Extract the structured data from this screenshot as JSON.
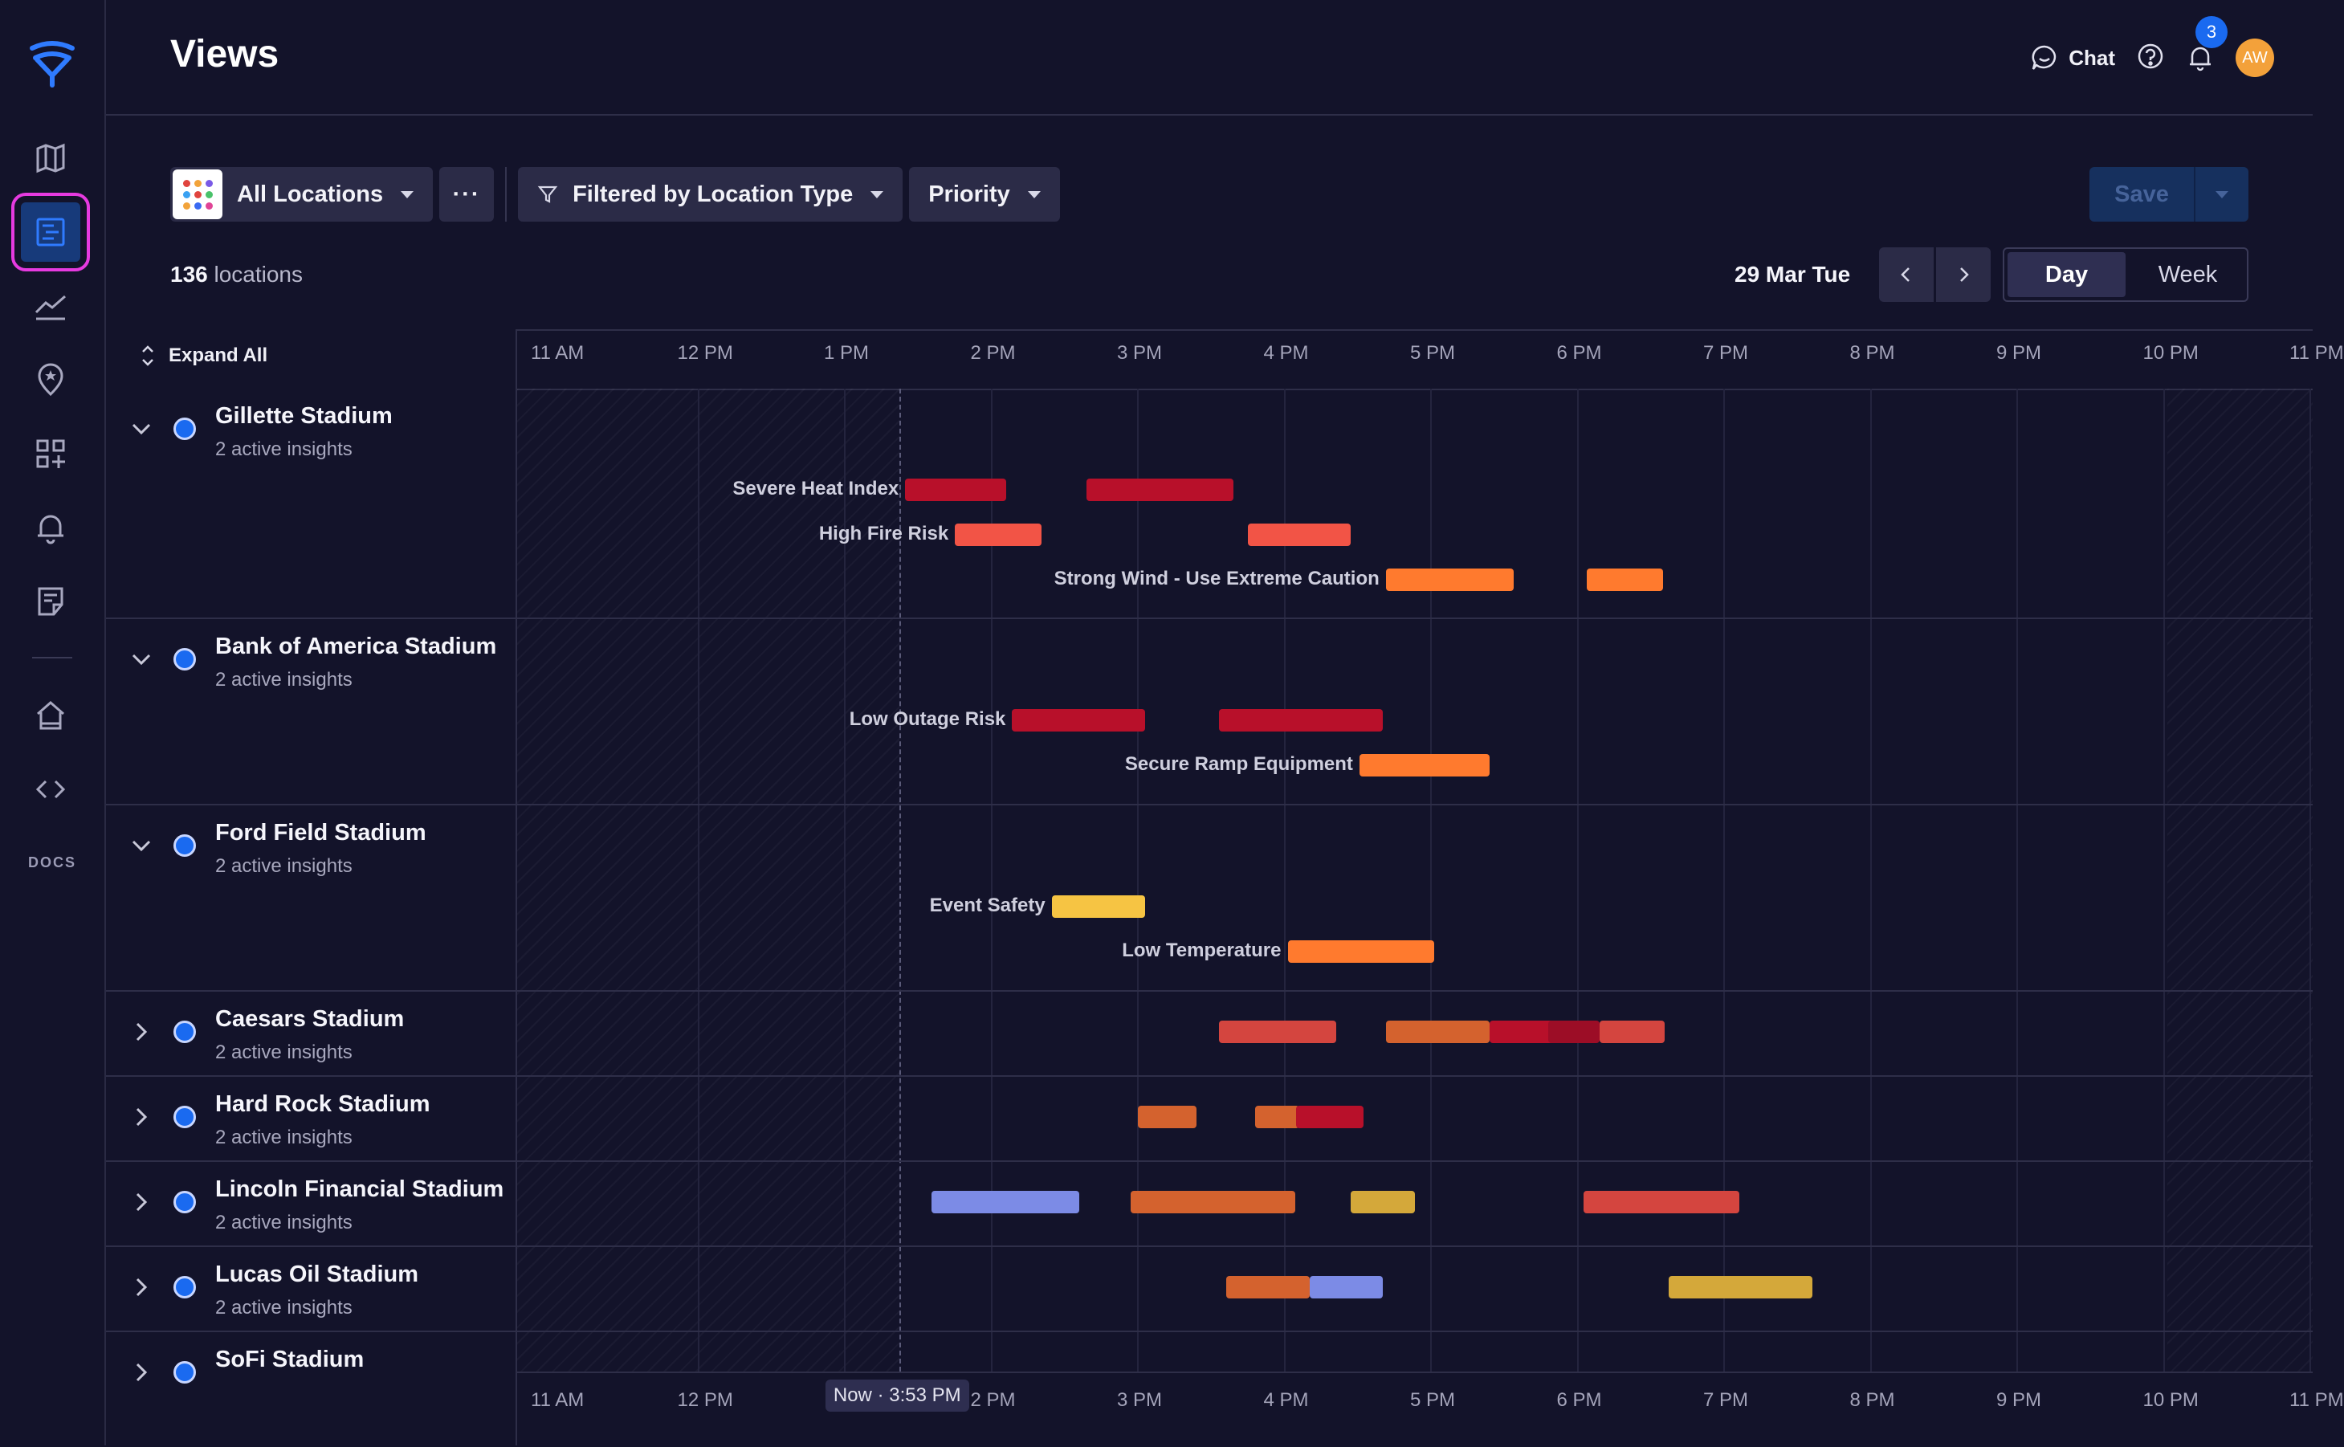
{
  "header": {
    "title": "Views",
    "chat_label": "Chat",
    "notification_count": "3",
    "avatar_initials": "AW"
  },
  "sidebar": {
    "items": [
      {
        "name": "map-icon"
      },
      {
        "name": "views-icon",
        "active": true
      },
      {
        "name": "analytics-icon"
      },
      {
        "name": "location-pin-icon"
      },
      {
        "name": "apps-add-icon"
      },
      {
        "name": "bell-icon"
      },
      {
        "name": "notes-icon"
      },
      {
        "name": "home-icon"
      },
      {
        "name": "code-icon"
      }
    ],
    "docs_label": "DOCS"
  },
  "toolbar": {
    "locations_label": "All Locations",
    "more_label": "···",
    "filter_label": "Filtered by Location Type",
    "priority_label": "Priority",
    "save_label": "Save"
  },
  "summary": {
    "count": "136",
    "count_suffix": " locations",
    "date": "29 Mar Tue",
    "view_day": "Day",
    "view_week": "Week"
  },
  "timeline": {
    "expand_all": "Expand All",
    "hours": [
      "11 AM",
      "12 PM",
      "1 PM",
      "2 PM",
      "3 PM",
      "4 PM",
      "5 PM",
      "6 PM",
      "7 PM",
      "8 PM",
      "9 PM",
      "10 PM",
      "11 PM"
    ],
    "now_label": "Now",
    "now_time": "· 3:53 PM"
  },
  "colors": {
    "severe": "#b8102a",
    "high": "#f25446",
    "orange": "#ff7a2e",
    "yellow": "#f6c443",
    "blue": "#7c8be6"
  },
  "rows": [
    {
      "name": "Gillette Stadium",
      "sub": "2 active insights",
      "expanded": true
    },
    {
      "name": "Bank of America Stadium",
      "sub": "2 active insights",
      "expanded": true
    },
    {
      "name": "Ford Field Stadium",
      "sub": "2 active insights",
      "expanded": true
    },
    {
      "name": "Caesars Stadium",
      "sub": "2 active insights",
      "expanded": false
    },
    {
      "name": "Hard Rock Stadium",
      "sub": "2 active insights",
      "expanded": false
    },
    {
      "name": "Lincoln Financial Stadium",
      "sub": "2 active insights",
      "expanded": false
    },
    {
      "name": "Lucas Oil Stadium",
      "sub": "2 active insights",
      "expanded": false
    },
    {
      "name": "SoFi Stadium",
      "sub": "",
      "expanded": false
    }
  ],
  "insights": [
    {
      "row": 0,
      "lane": 0,
      "label": "Severe Heat Index",
      "color": "severe",
      "segments": [
        [
          13.39,
          14.08
        ],
        [
          14.63,
          15.63
        ]
      ]
    },
    {
      "row": 0,
      "lane": 1,
      "label": "High Fire Risk",
      "color": "high",
      "segments": [
        [
          13.73,
          14.32
        ],
        [
          15.73,
          16.43
        ]
      ]
    },
    {
      "row": 0,
      "lane": 2,
      "label": "Strong Wind - Use Extreme Caution",
      "color": "orange",
      "segments": [
        [
          16.67,
          17.54
        ],
        [
          18.04,
          18.56
        ]
      ]
    },
    {
      "row": 1,
      "lane": 0,
      "label": "Low Outage Risk",
      "color": "severe",
      "segments": [
        [
          14.12,
          15.03
        ],
        [
          15.53,
          16.65
        ]
      ]
    },
    {
      "row": 1,
      "lane": 1,
      "label": "Secure Ramp Equipment",
      "color": "orange",
      "segments": [
        [
          16.49,
          17.38
        ]
      ]
    },
    {
      "row": 2,
      "lane": 0,
      "label": "Event Safety",
      "color": "yellow",
      "segments": [
        [
          14.39,
          15.03
        ]
      ]
    },
    {
      "row": 2,
      "lane": 1,
      "label": "Low Temperature",
      "color": "orange",
      "segments": [
        [
          16.0,
          17.0
        ]
      ]
    }
  ],
  "collapsed_bars": [
    {
      "row": 3,
      "color": "#d4453f",
      "segments": [
        [
          15.53,
          16.33
        ]
      ]
    },
    {
      "row": 3,
      "color": "#d4622e",
      "segments": [
        [
          16.67,
          17.38
        ]
      ]
    },
    {
      "row": 3,
      "color": "#b8102a",
      "segments": [
        [
          17.38,
          18.08
        ]
      ]
    },
    {
      "row": 3,
      "color": "#9c0d26",
      "segments": [
        [
          17.78,
          18.13
        ]
      ]
    },
    {
      "row": 3,
      "color": "#d4453f",
      "segments": [
        [
          18.13,
          18.57
        ]
      ]
    },
    {
      "row": 4,
      "color": "#d4622e",
      "segments": [
        [
          14.98,
          15.38
        ],
        [
          15.78,
          16.08
        ]
      ]
    },
    {
      "row": 4,
      "color": "#b8102a",
      "segments": [
        [
          16.06,
          16.52
        ]
      ]
    },
    {
      "row": 5,
      "color": "#7c8be6",
      "segments": [
        [
          13.57,
          14.58
        ]
      ]
    },
    {
      "row": 5,
      "color": "#d4622e",
      "segments": [
        [
          14.93,
          16.05
        ]
      ]
    },
    {
      "row": 5,
      "color": "#d4a83a",
      "segments": [
        [
          16.43,
          16.87
        ]
      ]
    },
    {
      "row": 5,
      "color": "#d4453f",
      "segments": [
        [
          18.02,
          19.08
        ]
      ]
    },
    {
      "row": 6,
      "color": "#d4622e",
      "segments": [
        [
          15.58,
          16.15
        ]
      ]
    },
    {
      "row": 6,
      "color": "#7c8be6",
      "segments": [
        [
          16.15,
          16.65
        ]
      ]
    },
    {
      "row": 6,
      "color": "#d4a83a",
      "segments": [
        [
          18.6,
          19.58
        ]
      ]
    }
  ]
}
